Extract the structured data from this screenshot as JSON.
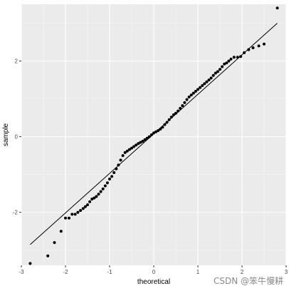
{
  "chart_data": {
    "type": "scatter",
    "xlabel": "theoretical",
    "ylabel": "sample",
    "xlim": [
      -3,
      3
    ],
    "ylim": [
      -3.4,
      3.5
    ],
    "x_ticks": [
      -3,
      -2,
      -1,
      0,
      1,
      2,
      3
    ],
    "y_ticks": [
      -2,
      0,
      2
    ],
    "grid": true,
    "reference_line": {
      "x": [
        -2.8,
        2.8
      ],
      "y": [
        -2.85,
        3.0
      ]
    },
    "points": {
      "x": [
        -2.8,
        -2.4,
        -2.25,
        -2.1,
        -2.0,
        -1.92,
        -1.85,
        -1.78,
        -1.72,
        -1.66,
        -1.6,
        -1.55,
        -1.5,
        -1.45,
        -1.4,
        -1.35,
        -1.3,
        -1.25,
        -1.2,
        -1.15,
        -1.1,
        -1.05,
        -1.0,
        -0.95,
        -0.9,
        -0.85,
        -0.8,
        -0.75,
        -0.7,
        -0.65,
        -0.6,
        -0.55,
        -0.5,
        -0.45,
        -0.4,
        -0.35,
        -0.3,
        -0.25,
        -0.2,
        -0.15,
        -0.1,
        -0.05,
        0.0,
        0.05,
        0.1,
        0.15,
        0.2,
        0.25,
        0.3,
        0.35,
        0.4,
        0.45,
        0.5,
        0.55,
        0.6,
        0.65,
        0.7,
        0.75,
        0.8,
        0.85,
        0.9,
        0.95,
        1.0,
        1.05,
        1.1,
        1.15,
        1.2,
        1.25,
        1.3,
        1.35,
        1.4,
        1.45,
        1.5,
        1.55,
        1.6,
        1.65,
        1.7,
        1.75,
        1.82,
        1.9,
        1.97,
        2.05,
        2.15,
        2.25,
        2.38,
        2.5,
        2.8
      ],
      "y": [
        -3.35,
        -3.15,
        -2.8,
        -2.5,
        -2.15,
        -2.15,
        -2.05,
        -2.05,
        -2.0,
        -1.95,
        -1.9,
        -1.85,
        -1.8,
        -1.72,
        -1.65,
        -1.62,
        -1.58,
        -1.52,
        -1.45,
        -1.38,
        -1.3,
        -1.22,
        -1.12,
        -1.05,
        -0.95,
        -0.85,
        -0.75,
        -0.62,
        -0.5,
        -0.42,
        -0.38,
        -0.34,
        -0.3,
        -0.26,
        -0.22,
        -0.18,
        -0.15,
        -0.12,
        -0.08,
        -0.04,
        0.0,
        0.05,
        0.1,
        0.13,
        0.16,
        0.2,
        0.25,
        0.32,
        0.38,
        0.45,
        0.52,
        0.58,
        0.62,
        0.68,
        0.75,
        0.82,
        0.9,
        0.98,
        1.05,
        1.1,
        1.15,
        1.2,
        1.25,
        1.3,
        1.35,
        1.4,
        1.45,
        1.5,
        1.55,
        1.62,
        1.68,
        1.72,
        1.78,
        1.85,
        1.92,
        1.95,
        2.0,
        2.05,
        2.1,
        2.1,
        2.12,
        2.22,
        2.3,
        2.35,
        2.4,
        2.45,
        3.4
      ]
    }
  },
  "watermark": "CSDN @笨牛慢耕"
}
